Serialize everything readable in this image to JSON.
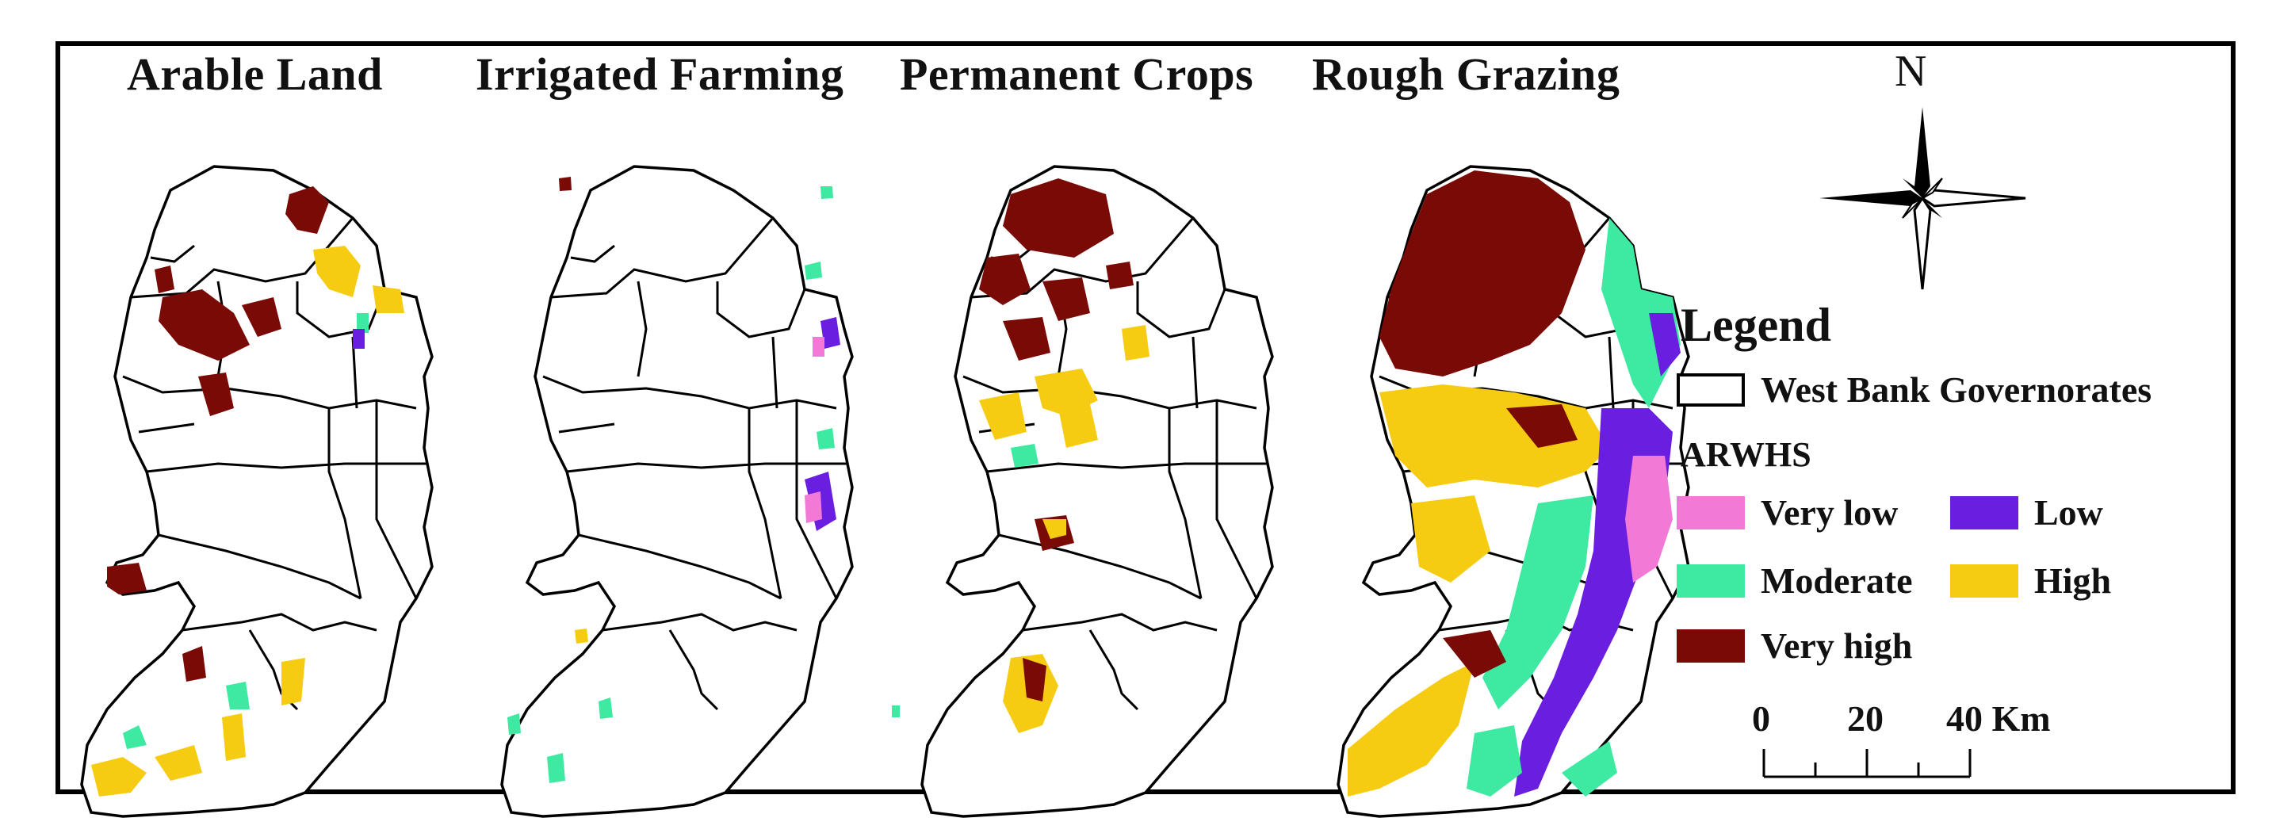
{
  "panels": [
    {
      "title": "Arable Land"
    },
    {
      "title": "Irrigated Farming"
    },
    {
      "title": "Permanent Crops"
    },
    {
      "title": "Rough Grazing"
    }
  ],
  "north_arrow": {
    "label": "N"
  },
  "legend": {
    "title": "Legend",
    "boundary_label": "West Bank Governorates",
    "index_label": "ARWHS",
    "classes": [
      {
        "label": "Very low",
        "color": "#f27ad6"
      },
      {
        "label": "Low",
        "color": "#6a1fe0"
      },
      {
        "label": "Moderate",
        "color": "#3ee9a2"
      },
      {
        "label": "High",
        "color": "#f6cc12"
      },
      {
        "label": "Very high",
        "color": "#7a0a06"
      }
    ]
  },
  "scale_bar": {
    "labels": [
      "0",
      "20",
      "40 Km"
    ]
  }
}
